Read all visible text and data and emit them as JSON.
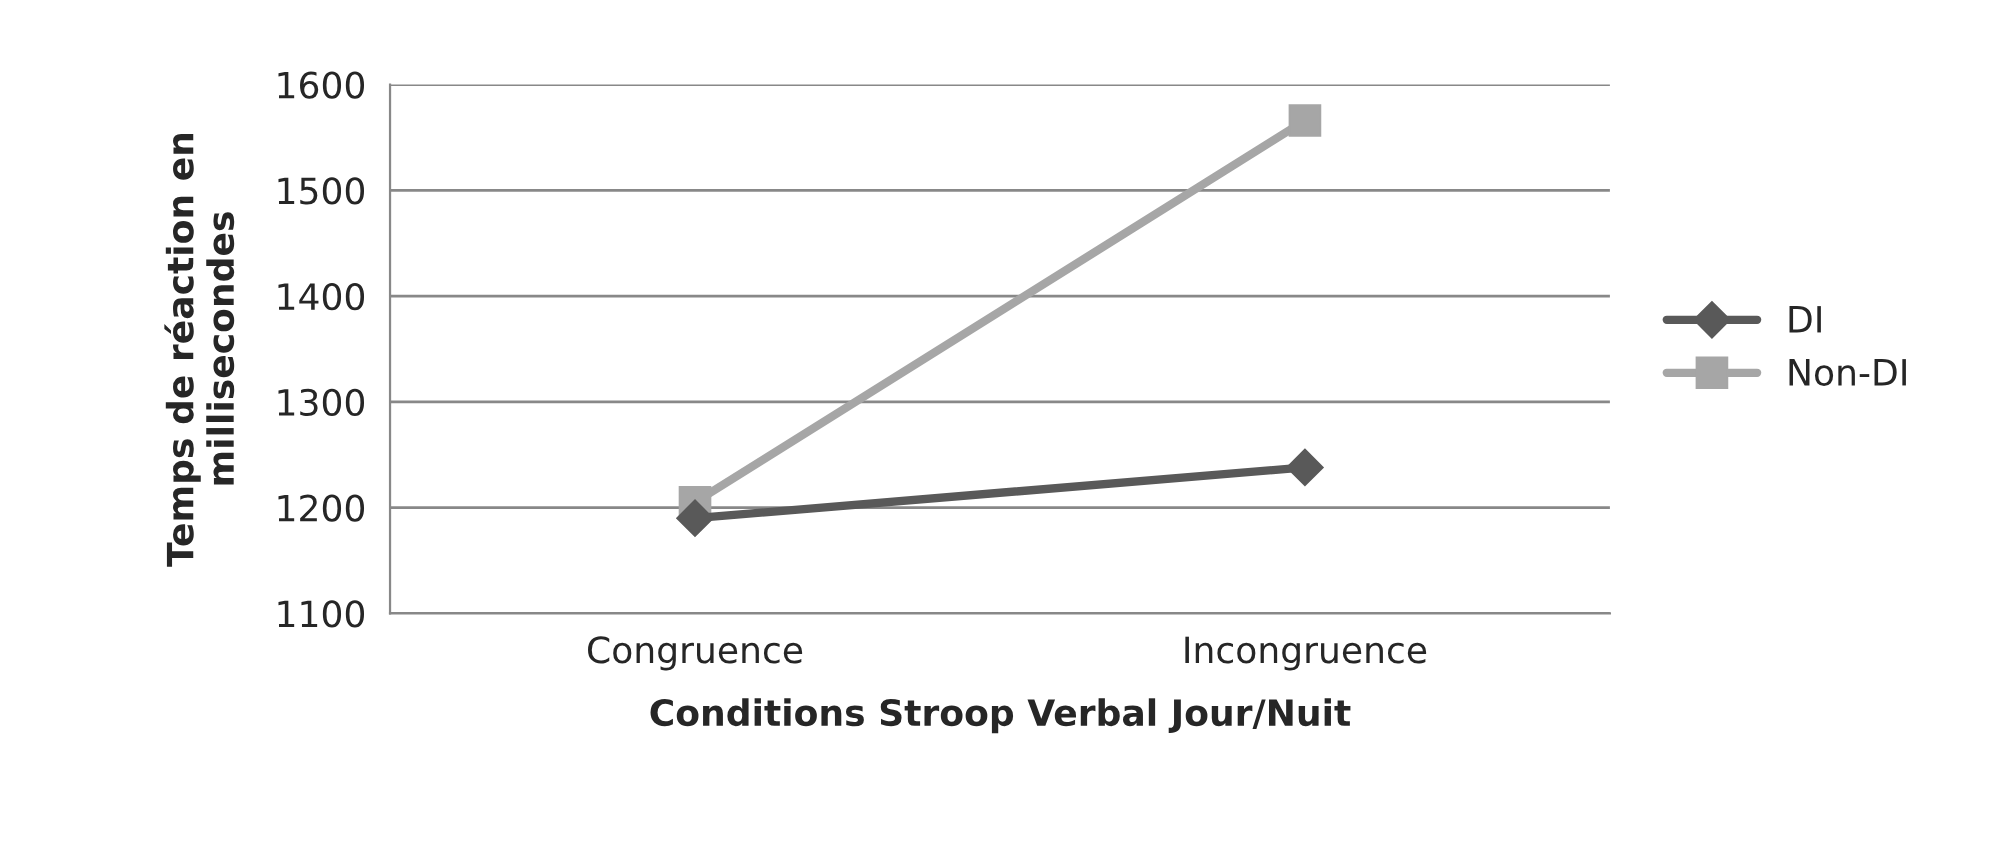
{
  "chart_data": {
    "type": "line",
    "xlabel": "Conditions Stroop Verbal Jour/Nuit",
    "ylabel": "Temps de réaction en\nmillisecondes",
    "categories": [
      "Congruence",
      "Incongruence"
    ],
    "series": [
      {
        "name": "DI",
        "color": "#595959",
        "values": [
          1190,
          1238
        ],
        "marker": "diamond"
      },
      {
        "name": "Non-DI",
        "color": "#a6a6a6",
        "values": [
          1205,
          1566
        ],
        "marker": "square"
      }
    ],
    "ylim": [
      1100,
      1600
    ],
    "yticks": [
      1100,
      1200,
      1300,
      1400,
      1500,
      1600
    ],
    "grid": "y",
    "legend": "right"
  }
}
